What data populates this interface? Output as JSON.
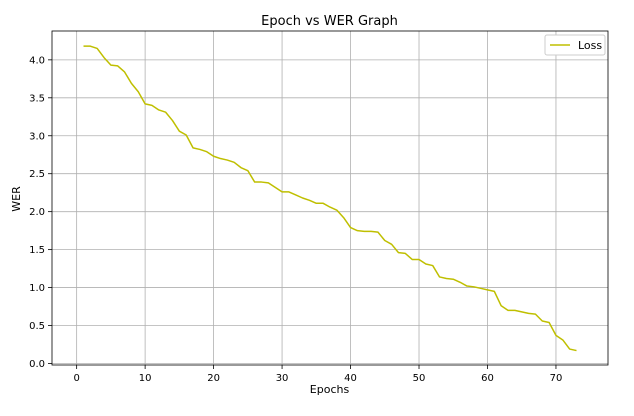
{
  "chart_data": {
    "type": "line",
    "title": "Epoch vs WER Graph",
    "xlabel": "Epochs",
    "ylabel": "WER",
    "xlim": [
      -3.6,
      77.6
    ],
    "ylim": [
      -0.02,
      4.38
    ],
    "xticks": [
      0,
      10,
      20,
      30,
      40,
      50,
      60,
      70
    ],
    "yticks": [
      0.0,
      0.5,
      1.0,
      1.5,
      2.0,
      2.5,
      3.0,
      3.5,
      4.0
    ],
    "grid": true,
    "legend_position": "top-right",
    "series": [
      {
        "name": "Loss",
        "color": "#bfbf00",
        "x": [
          1,
          2,
          3,
          4,
          5,
          6,
          7,
          8,
          9,
          10,
          11,
          12,
          13,
          14,
          15,
          16,
          17,
          18,
          19,
          20,
          21,
          22,
          23,
          24,
          25,
          26,
          27,
          28,
          29,
          30,
          31,
          32,
          33,
          34,
          35,
          36,
          37,
          38,
          39,
          40,
          41,
          42,
          43,
          44,
          45,
          46,
          47,
          48,
          49,
          50,
          51,
          52,
          53,
          54,
          55,
          56,
          57,
          58,
          59,
          60,
          61,
          62,
          63,
          64,
          65,
          66,
          67,
          68,
          69,
          70,
          71,
          72,
          73
        ],
        "y": [
          4.18,
          4.18,
          4.15,
          4.03,
          3.93,
          3.92,
          3.84,
          3.69,
          3.58,
          3.42,
          3.4,
          3.34,
          3.31,
          3.2,
          3.06,
          3.01,
          2.84,
          2.82,
          2.79,
          2.73,
          2.7,
          2.68,
          2.65,
          2.58,
          2.54,
          2.39,
          2.39,
          2.38,
          2.32,
          2.26,
          2.26,
          2.22,
          2.18,
          2.15,
          2.11,
          2.11,
          2.06,
          2.02,
          1.92,
          1.79,
          1.75,
          1.74,
          1.74,
          1.73,
          1.62,
          1.57,
          1.46,
          1.45,
          1.37,
          1.37,
          1.31,
          1.29,
          1.14,
          1.12,
          1.11,
          1.07,
          1.02,
          1.01,
          0.99,
          0.97,
          0.95,
          0.76,
          0.7,
          0.7,
          0.68,
          0.66,
          0.65,
          0.56,
          0.54,
          0.37,
          0.31,
          0.19,
          0.17
        ]
      }
    ]
  }
}
